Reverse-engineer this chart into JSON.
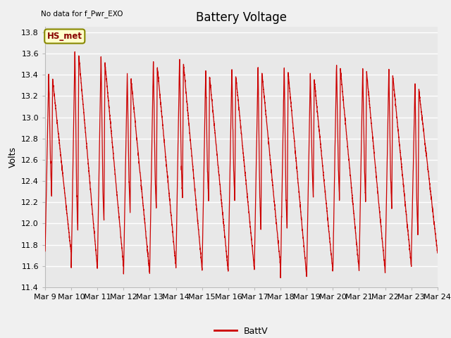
{
  "title": "Battery Voltage",
  "top_left_text": "No data for f_Pwr_EXO",
  "ylabel": "Volts",
  "legend_label": "BattV",
  "legend_line_color": "#cc0000",
  "box_label": "HS_met",
  "box_facecolor": "#ffffcc",
  "box_edgecolor": "#888800",
  "box_text_color": "#880000",
  "ylim_min": 11.4,
  "ylim_max": 13.85,
  "yticks": [
    11.4,
    11.6,
    11.8,
    12.0,
    12.2,
    12.4,
    12.6,
    12.8,
    13.0,
    13.2,
    13.4,
    13.6,
    13.8
  ],
  "xtick_labels": [
    "Mar 9",
    "Mar 10",
    "Mar 11",
    "Mar 12",
    "Mar 13",
    "Mar 14",
    "Mar 15",
    "Mar 16",
    "Mar 17",
    "Mar 18",
    "Mar 19",
    "Mar 20",
    "Mar 21",
    "Mar 22",
    "Mar 23",
    "Mar 24"
  ],
  "line_color": "#cc0000",
  "plot_bg_color": "#e8e8e8",
  "fig_bg_color": "#f0f0f0",
  "grid_color": "#ffffff",
  "title_fontsize": 12,
  "label_fontsize": 9,
  "tick_fontsize": 8,
  "cycle_tops": [
    13.4,
    13.63,
    13.56,
    13.4,
    13.52,
    13.55,
    13.43,
    13.44,
    13.46,
    13.47,
    13.4,
    13.5,
    13.47,
    13.44,
    13.3
  ],
  "cycle_bottoms": [
    11.72,
    11.58,
    11.6,
    11.53,
    11.6,
    11.58,
    11.55,
    11.57,
    11.6,
    11.5,
    11.55,
    11.57,
    11.55,
    11.6,
    11.73
  ],
  "notch_highs": [
    12.57,
    12.26,
    12.3,
    12.38,
    12.4,
    12.52,
    12.48,
    12.49,
    12.22,
    12.22,
    12.52,
    12.52,
    12.5,
    12.4,
    12.18
  ],
  "notch_lows": [
    12.26,
    11.95,
    12.05,
    12.1,
    12.15,
    12.25,
    12.22,
    12.22,
    11.95,
    11.95,
    12.25,
    12.25,
    12.22,
    12.15,
    11.9
  ]
}
